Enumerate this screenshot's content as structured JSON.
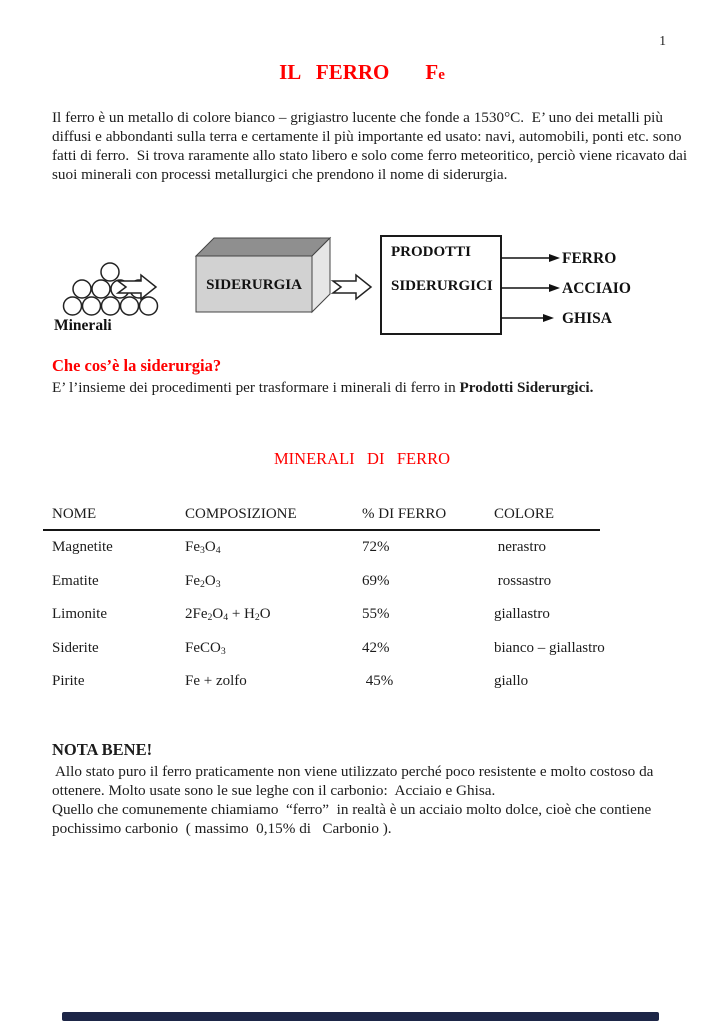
{
  "page": {
    "number": "1"
  },
  "title": {
    "main": "IL   FERRO",
    "symbol_main": "F",
    "symbol_small": "e"
  },
  "intro": {
    "text": "Il ferro è un metallo di colore bianco – grigiastro lucente che fonde a 1530°C.  E’ uno dei metalli più\ndiffusi e abbondanti sulla terra e certamente il più importante ed usato: navi, automobili, ponti etc. sono\nfatti di ferro.  Si trova raramente allo stato libero e solo come ferro meteoritico, perciò viene ricavato dai\nsuoi minerali con processi metallurgici che prendono il nome di siderurgia."
  },
  "diagram": {
    "minerali_label": "Minerali",
    "siderurgia_label": "SIDERURGIA",
    "prodotti_line1": "PRODOTTI",
    "prodotti_line2": "SIDERURGICI",
    "outputs": [
      "FERRO",
      "ACCIAIO",
      "GHISA"
    ],
    "box_front_color": "#d2d2d2",
    "box_top_color": "#8f8f8f",
    "box_side_color": "#e6e6e6"
  },
  "siderurgia_section": {
    "heading": "Che cos’è la siderurgia?",
    "body_regular": "E’ l’insieme dei procedimenti per trasformare i minerali di ferro in ",
    "body_bold": "Prodotti Siderurgici."
  },
  "minerals_section": {
    "heading": "MINERALI   DI   FERRO"
  },
  "table": {
    "headers": [
      "NOME",
      "COMPOSIZIONE",
      "% DI FERRO",
      "COLORE"
    ],
    "rows": [
      {
        "name": "Magnetite",
        "formula": [
          {
            "t": "Fe"
          },
          {
            "s": "3"
          },
          {
            "t": "O"
          },
          {
            "s": "4"
          }
        ],
        "percent": "72%",
        "color": " nerastro"
      },
      {
        "name": "Ematite",
        "formula": [
          {
            "t": "Fe"
          },
          {
            "s": "2"
          },
          {
            "t": "O"
          },
          {
            "s": "3"
          }
        ],
        "percent": "69%",
        "color": " rossastro"
      },
      {
        "name": "Limonite",
        "formula": [
          {
            "t": "2Fe"
          },
          {
            "s": "2"
          },
          {
            "t": "O"
          },
          {
            "s": "4"
          },
          {
            "t": " + H"
          },
          {
            "s": "2"
          },
          {
            "t": "O"
          }
        ],
        "percent": "55%",
        "color": "giallastro"
      },
      {
        "name": "Siderite",
        "formula": [
          {
            "t": "FeCO"
          },
          {
            "s": "3"
          }
        ],
        "percent": "42%",
        "color": "bianco – giallastro"
      },
      {
        "name": "Pirite",
        "formula": [
          {
            "t": "Fe + zolfo"
          }
        ],
        "percent": " 45%",
        "color": "giallo"
      }
    ]
  },
  "nota_bene": {
    "heading": "NOTA BENE!",
    "text": " Allo stato puro il ferro praticamente non viene utilizzato perché poco resistente e molto costoso da\nottenere. Molto usate sono le sue leghe con il carbonio:  Acciaio e Ghisa.\nQuello che comunemente chiamiamo  “ferro”  in realtà è un acciaio molto dolce, cioè che contiene\npochissimo carbonio  ( massimo  0,15% di   Carbonio ).",
    "accent_color": "#ff0000"
  },
  "footer_bar": {
    "color": "#1d2647"
  }
}
